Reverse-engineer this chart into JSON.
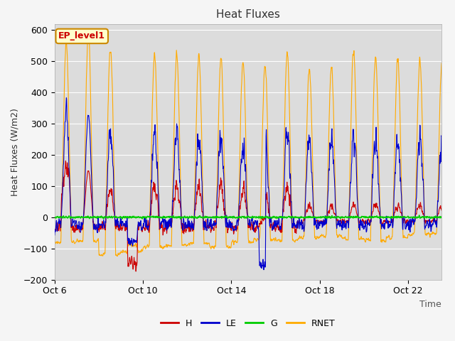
{
  "title": "Heat Fluxes",
  "xlabel": "Time",
  "ylabel": "Heat Fluxes (W/m2)",
  "ylim": [
    -200,
    620
  ],
  "xlim_days": [
    0,
    17.5
  ],
  "x_ticks_labels": [
    "Oct 6",
    "Oct 10",
    "Oct 14",
    "Oct 18",
    "Oct 22"
  ],
  "x_ticks_pos": [
    0,
    4,
    8,
    12,
    16
  ],
  "annotation": "EP_level1",
  "legend_entries": [
    "H",
    "LE",
    "G",
    "RNET"
  ],
  "line_colors": [
    "#cc0000",
    "#0000cc",
    "#00cc00",
    "#ffaa00"
  ],
  "background_color": "#dcdcdc",
  "fig_background": "#f5f5f5",
  "n_days": 18,
  "pts_per_day": 96,
  "seed": 77
}
